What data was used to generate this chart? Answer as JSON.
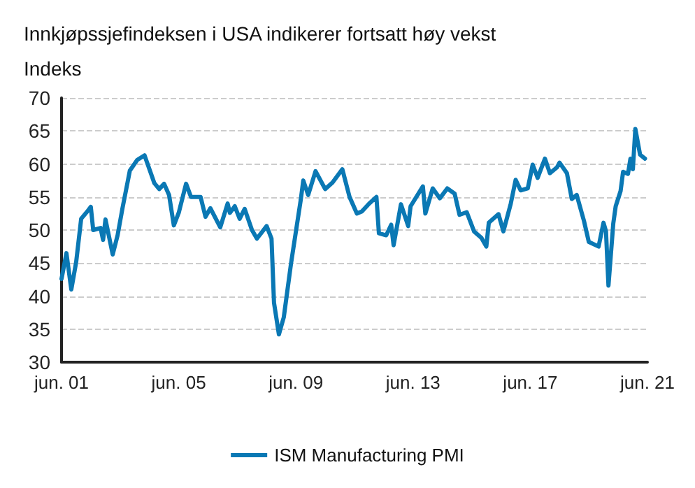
{
  "chart_data": {
    "type": "line",
    "title": "Innkjøpssjefindeksen i USA indikerer fortsatt høy vekst",
    "ylabel": "Indeks",
    "x": [
      "2001-06",
      "2001-08",
      "2001-10",
      "2001-12",
      "2002-02",
      "2002-05",
      "2002-06",
      "2002-07",
      "2002-10",
      "2002-11",
      "2002-12",
      "2003-03",
      "2003-05",
      "2003-07",
      "2003-10",
      "2004-01",
      "2004-04",
      "2004-08",
      "2004-10",
      "2004-12",
      "2005-02",
      "2005-04",
      "2005-06",
      "2005-09",
      "2005-11",
      "2006-03",
      "2006-05",
      "2006-07",
      "2006-11",
      "2007-02",
      "2007-03",
      "2007-05",
      "2007-07",
      "2007-09",
      "2007-12",
      "2008-02",
      "2008-06",
      "2008-08",
      "2008-09",
      "2008-11",
      "2009-01",
      "2009-04",
      "2009-08",
      "2009-09",
      "2009-11",
      "2010-02",
      "2010-06",
      "2010-09",
      "2011-01",
      "2011-04",
      "2011-07",
      "2011-09",
      "2011-12",
      "2012-03",
      "2012-04",
      "2012-07",
      "2012-09",
      "2012-10",
      "2013-01",
      "2013-04",
      "2013-05",
      "2013-10",
      "2013-11",
      "2014-02",
      "2014-05",
      "2014-08",
      "2014-11",
      "2015-01",
      "2015-04",
      "2015-07",
      "2015-10",
      "2015-12",
      "2016-01",
      "2016-05",
      "2016-07",
      "2016-10",
      "2016-12",
      "2017-02",
      "2017-05",
      "2017-07",
      "2017-09",
      "2017-12",
      "2018-02",
      "2018-05",
      "2018-06",
      "2018-09",
      "2018-11",
      "2019-01",
      "2019-04",
      "2019-06",
      "2019-10",
      "2019-12",
      "2020-01",
      "2020-02",
      "2020-04",
      "2020-05",
      "2020-07",
      "2020-08",
      "2020-10",
      "2020-11",
      "2020-12",
      "2021-01",
      "2021-03",
      "2021-05"
    ],
    "series": [
      {
        "name": "ISM Manufacturing PMI",
        "color": "#0a78b4",
        "values": [
          42.6,
          46.5,
          41,
          45.2,
          51.7,
          53,
          53.5,
          50,
          50.3,
          48.5,
          51.6,
          46.3,
          49.2,
          53.3,
          59,
          60.6,
          61.3,
          57.1,
          56.2,
          57,
          55.3,
          50.7,
          52.6,
          57,
          55,
          55,
          52,
          53.3,
          50.4,
          54,
          52.6,
          53.6,
          51.7,
          53.2,
          50,
          48.7,
          50.6,
          48.7,
          39,
          34.2,
          36.8,
          44.9,
          54.6,
          57.5,
          55.3,
          58.9,
          56.2,
          57.2,
          59.2,
          55,
          52.5,
          52.8,
          54,
          55,
          49.5,
          49.2,
          50.8,
          47.7,
          53.9,
          50.6,
          53.6,
          56.6,
          52.5,
          56.3,
          54.8,
          56.3,
          55.5,
          52.3,
          52.7,
          49.8,
          48.8,
          47.5,
          51.1,
          52.4,
          49.8,
          54,
          57.6,
          56,
          56.3,
          59.9,
          57.9,
          60.8,
          58.6,
          59.5,
          60.2,
          58.6,
          54.7,
          55.3,
          51.4,
          48.2,
          47.5,
          51.1,
          49.8,
          41.6,
          51,
          53.6,
          55.9,
          58.8,
          58.5,
          60.8,
          59.2,
          65.3,
          61.4,
          60.8
        ]
      }
    ],
    "xlim": [
      "2001-06",
      "2021-06"
    ],
    "xticks": [
      {
        "value": "2001-06",
        "label": "jun. 01"
      },
      {
        "value": "2005-06",
        "label": "jun. 05"
      },
      {
        "value": "2009-06",
        "label": "jun. 09"
      },
      {
        "value": "2013-06",
        "label": "jun. 13"
      },
      {
        "value": "2017-06",
        "label": "jun. 17"
      },
      {
        "value": "2021-06",
        "label": "jun. 21"
      }
    ],
    "ylim": [
      30,
      70
    ],
    "yticks": [
      30,
      35,
      40,
      45,
      50,
      55,
      60,
      65,
      70
    ],
    "grid": "y",
    "legend": "bottom",
    "marker": "none",
    "line_style": "solid"
  }
}
